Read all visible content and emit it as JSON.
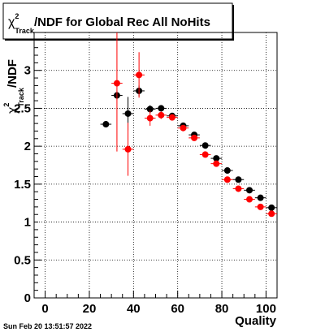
{
  "chart_data": {
    "type": "scatter",
    "title": "χ²_Track/NDF for Global Rec All NoHits",
    "title_parts": {
      "chi": "χ",
      "sup": "2",
      "sub": "Track",
      "rest": "/NDF for Global Rec All NoHits"
    },
    "xlabel": "Quality",
    "ylabel": "χ²_Track/NDF",
    "ylabel_parts": {
      "chi": "χ",
      "sup": "2",
      "sub": "Track",
      "rest": "/NDF"
    },
    "xlim": [
      -5,
      105
    ],
    "ylim": [
      0,
      3.5
    ],
    "x_ticks": [
      0,
      20,
      40,
      60,
      80,
      100
    ],
    "y_ticks": [
      0,
      0.5,
      1,
      1.5,
      2,
      2.5,
      3
    ],
    "x_tick_labels": [
      "0",
      "20",
      "40",
      "60",
      "80",
      "100"
    ],
    "y_tick_labels": [
      "0",
      "0.5",
      "1",
      "1.5",
      "2",
      "2.5",
      "3"
    ],
    "grid": true,
    "timestamp": "Sun Feb 20 13:51:57 2022",
    "series": [
      {
        "color": "#000000",
        "x": [
          27.5,
          32.5,
          37.5,
          42.5,
          47.5,
          52.5,
          57.5,
          62.5,
          67.5,
          72.5,
          77.5,
          82.5,
          87.5,
          92.5,
          97.5,
          102.5
        ],
        "y": [
          2.29,
          2.67,
          2.43,
          2.73,
          2.49,
          2.5,
          2.4,
          2.27,
          2.15,
          2.01,
          1.84,
          1.68,
          1.56,
          1.42,
          1.32,
          1.19
        ],
        "yerr": [
          0.0,
          0.05,
          0.22,
          0.07,
          0.05,
          0.03,
          0.03,
          0.02,
          0.02,
          0.02,
          0.02,
          0.02,
          0.02,
          0.02,
          0.02,
          0.02
        ]
      },
      {
        "color": "#ff0000",
        "x": [
          32.5,
          37.5,
          42.5,
          47.5,
          52.5,
          57.5,
          62.5,
          67.5,
          72.5,
          77.5,
          82.5,
          87.5,
          92.5,
          97.5,
          102.5
        ],
        "y": [
          2.83,
          1.96,
          2.94,
          2.37,
          2.41,
          2.38,
          2.24,
          2.11,
          1.89,
          1.77,
          1.56,
          1.44,
          1.3,
          1.2,
          1.11
        ],
        "yerr": [
          0.9,
          0.35,
          0.3,
          0.1,
          0.05,
          0.04,
          0.03,
          0.03,
          0.02,
          0.02,
          0.02,
          0.02,
          0.02,
          0.02,
          0.02
        ]
      }
    ]
  }
}
